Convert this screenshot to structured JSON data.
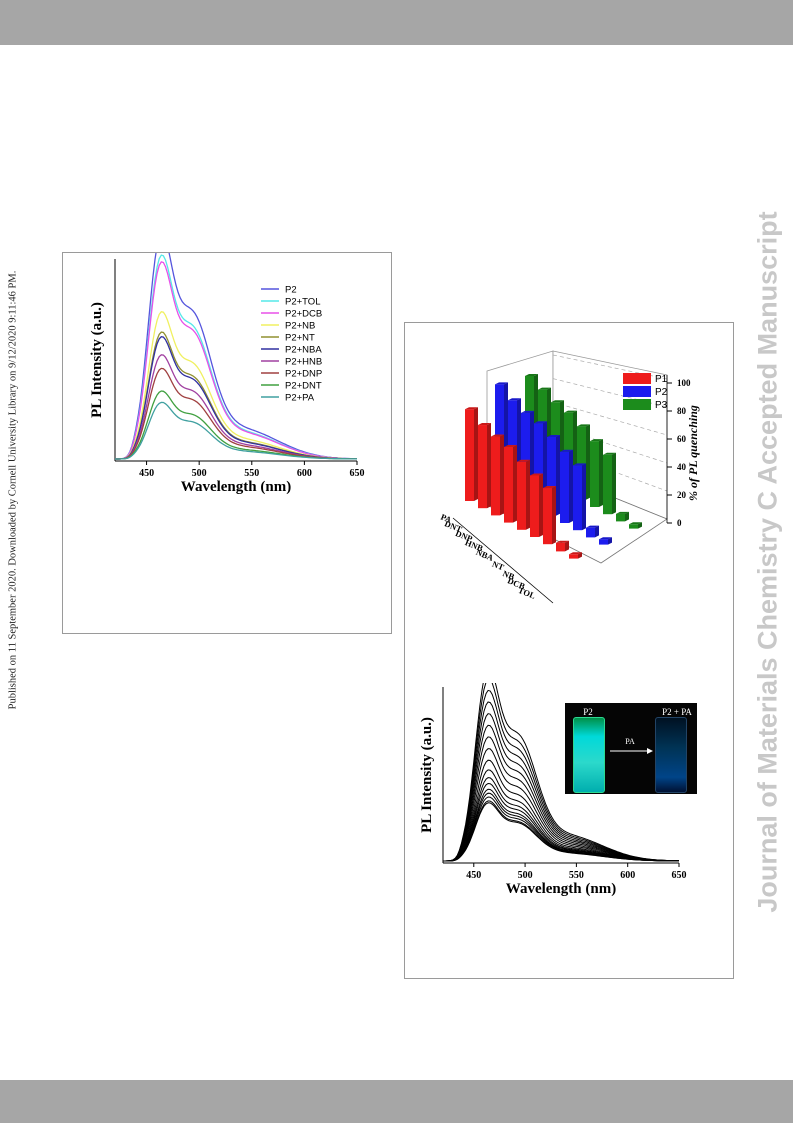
{
  "page": {
    "side_note": "Published on 11 September 2020. Downloaded by Cornell University Library on 9/12/2020 9:11:46 PM.",
    "watermark": "Journal of Materials Chemistry C Accepted Manuscript"
  },
  "chart_data": [
    {
      "type": "line",
      "xlabel": "Wavelength (nm)",
      "ylabel": "PL Intensity (a.u.)",
      "xlim": [
        420,
        650
      ],
      "xticks": [
        "450",
        "500",
        "550",
        "600",
        "650"
      ],
      "legend_position": "top-right",
      "series": [
        {
          "name": "P2",
          "color": "#5555dd",
          "peak": 1.0
        },
        {
          "name": "P2+TOL",
          "color": "#55e8e8",
          "peak": 0.9
        },
        {
          "name": "P2+DCB",
          "color": "#e850e8",
          "peak": 0.87
        },
        {
          "name": "P2+NB",
          "color": "#f0f060",
          "peak": 0.65
        },
        {
          "name": "P2+NT",
          "color": "#909030",
          "peak": 0.56
        },
        {
          "name": "P2+NBA",
          "color": "#3030a0",
          "peak": 0.54
        },
        {
          "name": "P2+HNB",
          "color": "#a040a0",
          "peak": 0.46
        },
        {
          "name": "P2+DNP",
          "color": "#a04040",
          "peak": 0.4
        },
        {
          "name": "P2+DNT",
          "color": "#40a040",
          "peak": 0.3
        },
        {
          "name": "P2+PA",
          "color": "#40a0a0",
          "peak": 0.25
        }
      ]
    },
    {
      "type": "bar",
      "zlabel": "% of PL quenching",
      "zticks": [
        "0",
        "20",
        "40",
        "60",
        "80",
        "100"
      ],
      "categories": [
        "PA",
        "DNT",
        "DNP",
        "HNB",
        "NBA",
        "NT",
        "NB",
        "DCB",
        "TOL"
      ],
      "legend_position": "top-right",
      "series": [
        {
          "name": "P1",
          "color": "#ee1c1c",
          "values": [
            85,
            77,
            73,
            70,
            63,
            57,
            52,
            8,
            4
          ]
        },
        {
          "name": "P2",
          "color": "#1c1cee",
          "values": [
            95,
            87,
            82,
            79,
            73,
            66,
            60,
            9,
            5
          ]
        },
        {
          "name": "P3",
          "color": "#1c8c1c",
          "values": [
            88,
            82,
            77,
            74,
            68,
            61,
            55,
            7,
            4
          ]
        }
      ]
    },
    {
      "type": "line",
      "xlabel": "Wavelength (nm)",
      "ylabel": "PL Intensity (a.u.)",
      "xlim": [
        420,
        650
      ],
      "xticks": [
        "450",
        "500",
        "550",
        "600",
        "650"
      ],
      "curve_color": "#000000",
      "peaks": [
        1.0,
        0.94,
        0.88,
        0.82,
        0.76,
        0.7,
        0.64,
        0.58,
        0.52,
        0.47,
        0.43,
        0.4,
        0.37,
        0.35,
        0.33,
        0.31,
        0.3
      ],
      "inset": {
        "left_label": "P2",
        "right_label": "P2 + PA",
        "arrow_label": "PA"
      }
    }
  ]
}
